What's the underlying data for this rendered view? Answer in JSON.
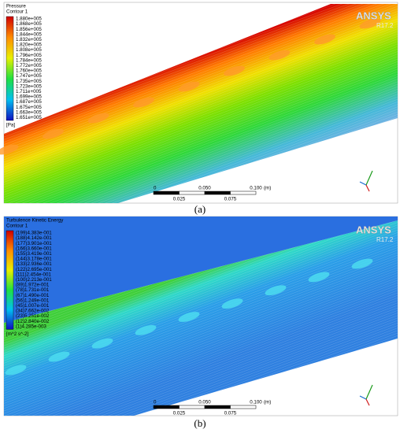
{
  "panels": [
    {
      "legend_title": "Pressure",
      "legend_subtitle": "Contour 1",
      "legend_values": [
        "1.880e+005",
        "1.868e+005",
        "1.856e+005",
        "1.844e+005",
        "1.832e+005",
        "1.820e+005",
        "1.808e+005",
        "1.796e+005",
        "1.784e+005",
        "1.772e+005",
        "1.760e+005",
        "1.747e+005",
        "1.735e+005",
        "1.723e+005",
        "1.711e+005",
        "1.699e+005",
        "1.687e+005",
        "1.675e+005",
        "1.663e+005",
        "1.651e+005"
      ],
      "unit": "[Pa]",
      "brand": "ANSYS",
      "version": "R17.2",
      "scale_top": [
        "0",
        "0.050",
        "0.100"
      ],
      "scale_unit": "(m)",
      "scale_bottom": [
        "0.025",
        "0.075"
      ],
      "caption": "(a)"
    },
    {
      "legend_title": "Turbulence Kinetic Energy",
      "legend_subtitle": "Contour 1",
      "legend_values": [
        "(199)4.383e-001",
        "(188)4.142e-001",
        "(177)3.901e-001",
        "(166)3.660e-001",
        "(155)3.419e-001",
        "(144)3.178e-001",
        "(133)2.936e-001",
        "(122)2.695e-001",
        "(111)2.454e-001",
        "(100)2.213e-001",
        "(89)1.972e-001",
        "(78)1.731e-001",
        "(67)1.490e-001",
        "(56)1.249e-001",
        "(45)1.007e-001",
        "(34)7.662e-002",
        "(23)5.251e-002",
        "(12)2.840e-002",
        "(1)4.285e-003"
      ],
      "unit": "[m^2 s^-2]",
      "brand": "ANSYS",
      "version": "R17.2",
      "scale_top": [
        "0",
        "0.050",
        "0.100"
      ],
      "scale_unit": "(m)",
      "scale_bottom": [
        "0.025",
        "0.075"
      ],
      "caption": "(b)"
    }
  ]
}
